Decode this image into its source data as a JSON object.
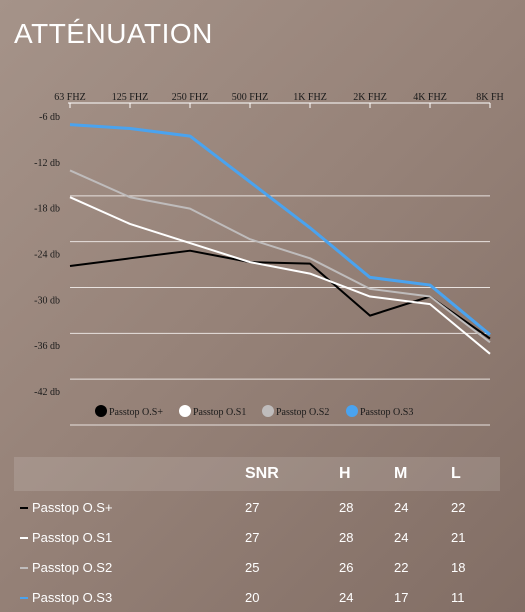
{
  "title": "ATTÉNUATION",
  "chart_data": {
    "type": "line",
    "categories": [
      "63 FHZ",
      "125 FHZ",
      "250 FHZ",
      "500 FHZ",
      "1K FHZ",
      "2K FHZ",
      "4K FHZ",
      "8K FH"
    ],
    "y_tick_labels": [
      "-6 db",
      "-12 db",
      "-18 db",
      "-24 db",
      "-30 db",
      "-36 db",
      "-42 db"
    ],
    "y_ticks": [
      -6,
      -12,
      -18,
      -24,
      -30,
      -36,
      -42
    ],
    "ylim": [
      -42,
      -6
    ],
    "grid": true,
    "legend_position": "bottom",
    "series": [
      {
        "name": "Passtop O.S+",
        "color": "#000000",
        "values": [
          -25.5,
          -24.5,
          -23.5,
          -25,
          -25.2,
          -32,
          -29.5,
          -35
        ]
      },
      {
        "name": "Passtop O.S1",
        "color": "#ffffff",
        "values": [
          -16.5,
          -20,
          -22.5,
          -25,
          -26.5,
          -29.5,
          -30.5,
          -37
        ]
      },
      {
        "name": "Passtop O.S2",
        "color": "#bfbcbc",
        "values": [
          -13,
          -16.5,
          -18,
          -22,
          -24.5,
          -28.5,
          -29.5,
          -35.5
        ]
      },
      {
        "name": "Passtop O.S3",
        "color": "#4aa3ef",
        "values": [
          -7,
          -7.5,
          -8.5,
          -14.5,
          -20.5,
          -27,
          -28,
          -34.5
        ]
      }
    ]
  },
  "table": {
    "headers": [
      "",
      "SNR",
      "H",
      "M",
      "L"
    ],
    "rows": [
      {
        "label": "Passtop O.S+",
        "color": "#000000",
        "snr": "27",
        "h": "28",
        "m": "24",
        "l": "22"
      },
      {
        "label": "Passtop O.S1",
        "color": "#ffffff",
        "snr": "27",
        "h": "28",
        "m": "24",
        "l": "21"
      },
      {
        "label": "Passtop O.S2",
        "color": "#bfbcbc",
        "snr": "25",
        "h": "26",
        "m": "22",
        "l": "18"
      },
      {
        "label": "Passtop O.S3",
        "color": "#4aa3ef",
        "snr": "20",
        "h": "24",
        "m": "17",
        "l": "11"
      }
    ]
  }
}
